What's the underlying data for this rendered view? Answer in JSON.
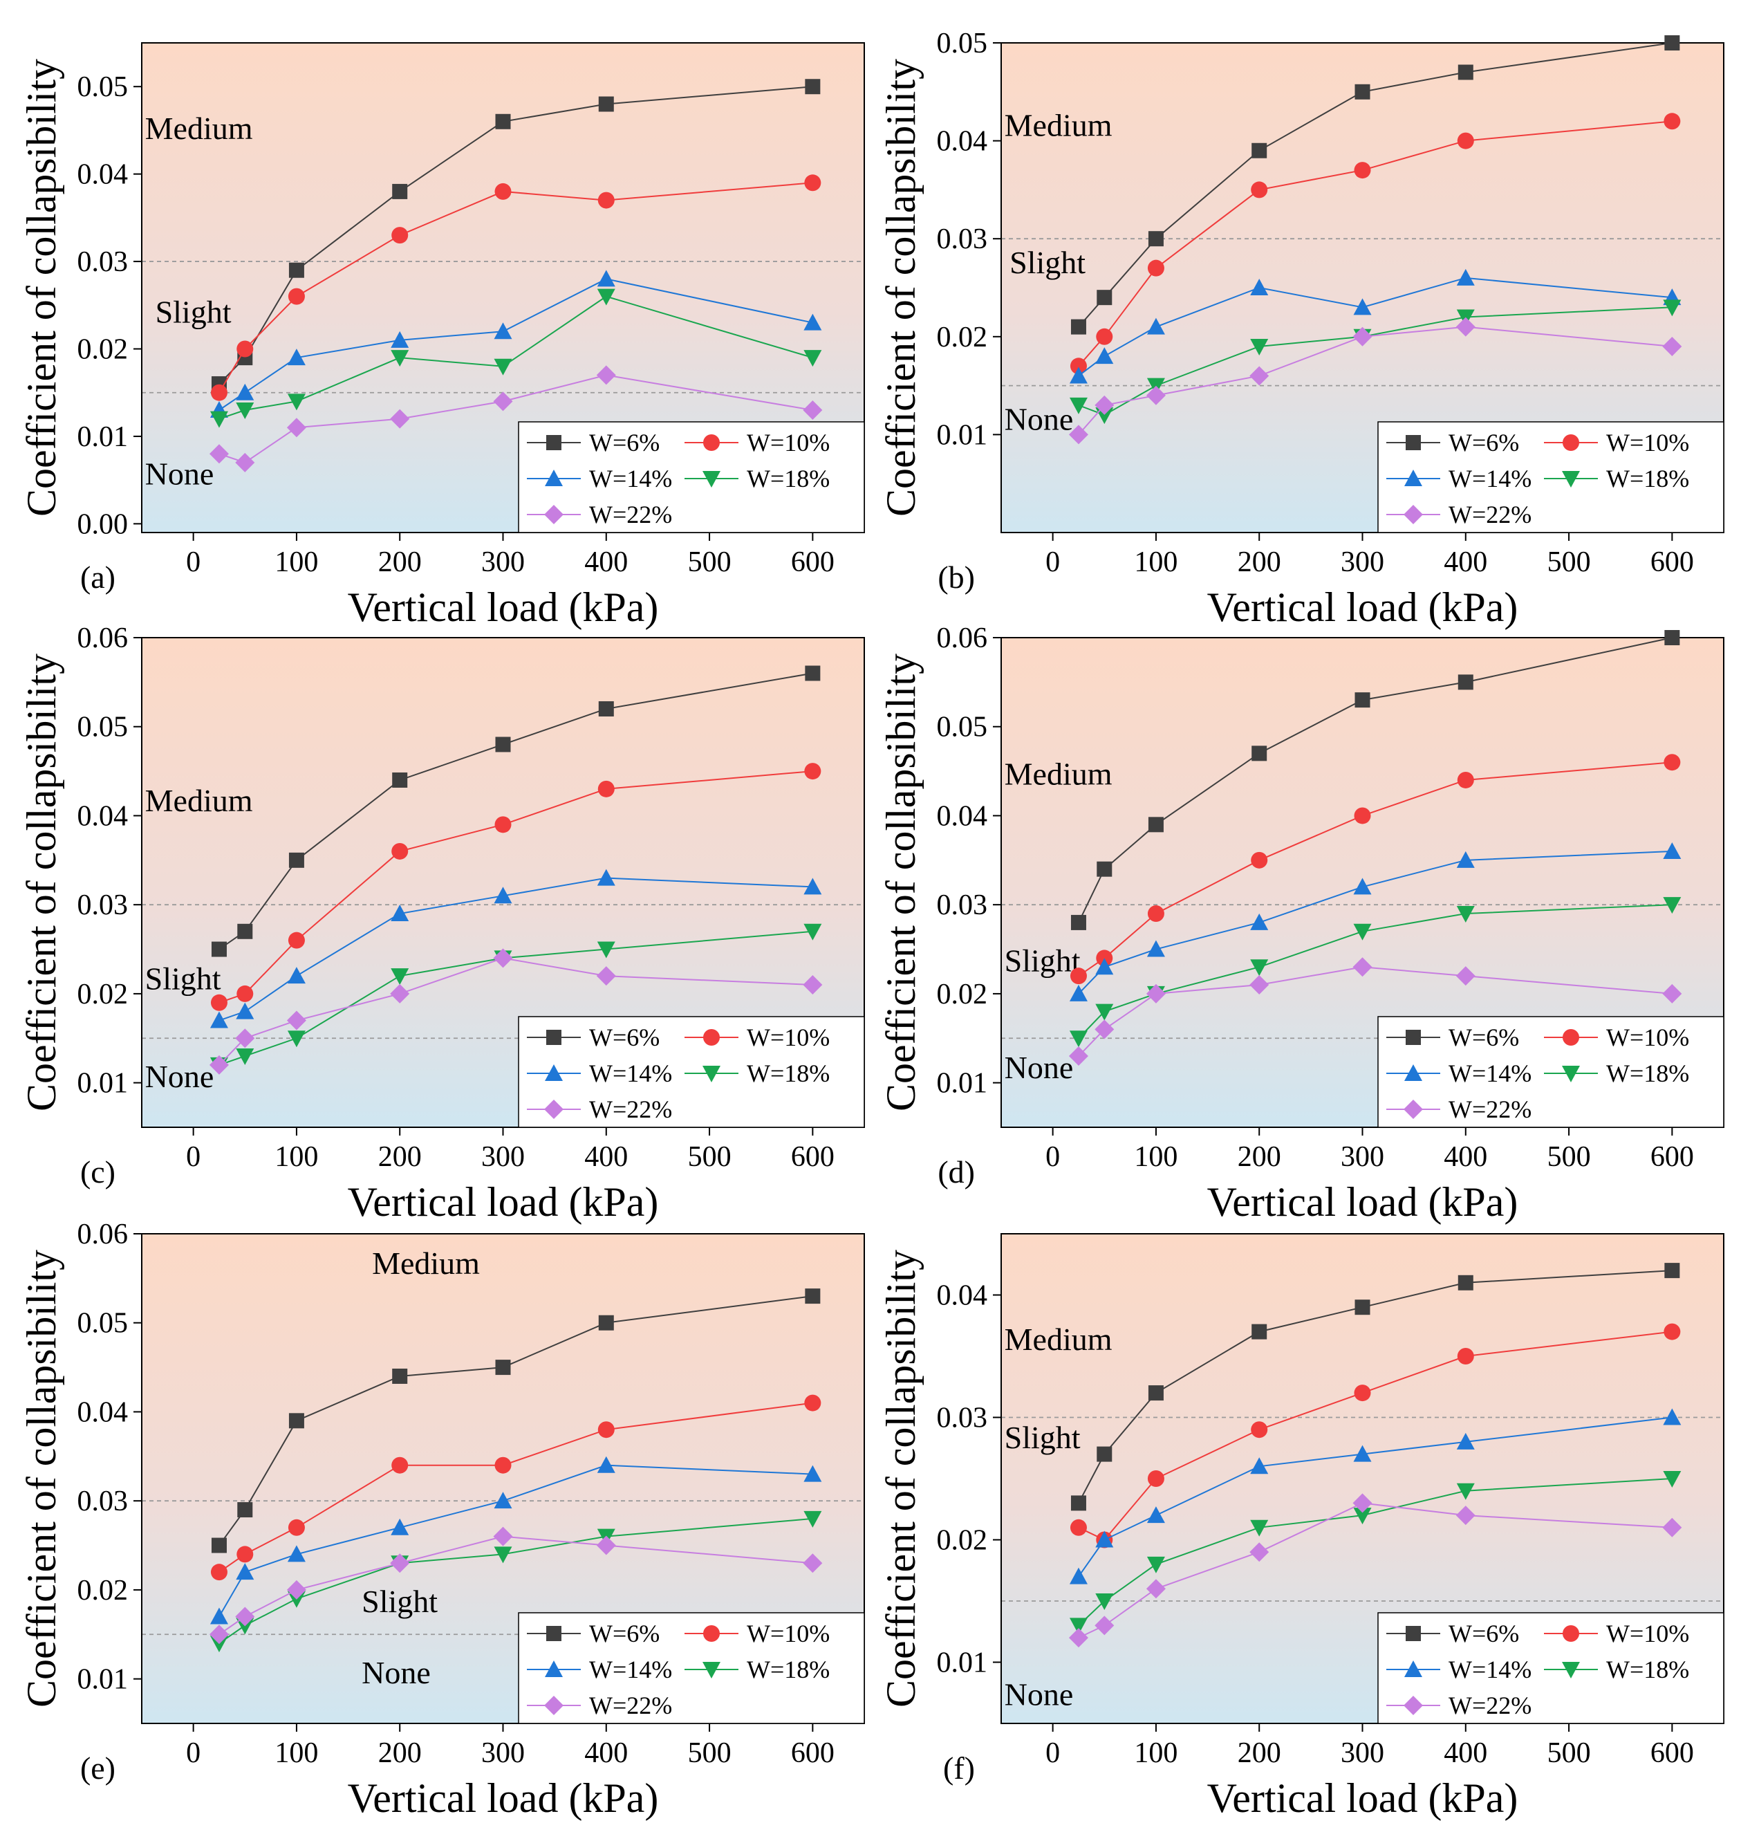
{
  "figure": {
    "ylabel": "Coefficient of collapsibility",
    "xlabel": "Vertical load (kPa)",
    "xticks": [
      "0",
      "100",
      "200",
      "300",
      "400",
      "500",
      "600"
    ],
    "colors": {
      "W=6%": "#3f3f3f",
      "W=10%": "#f03c3c",
      "W=14%": "#1f77d6",
      "W=18%": "#1aa64f",
      "W=22%": "#c77ee0",
      "medium_zone": "#fcd9c6",
      "none_zone": "#cfe6f1"
    }
  },
  "chart_data": [
    {
      "panel": "(a)",
      "type": "line",
      "xlabel": "Vertical load (kPa)",
      "ylabel": "Coefficient of collapsibility",
      "xlim": [
        -50,
        650
      ],
      "ylim": [
        -0.001,
        0.055
      ],
      "yticks": [
        "0.00",
        "0.01",
        "0.02",
        "0.03",
        "0.04",
        "0.05"
      ],
      "thresholds": [
        0.015,
        0.03
      ],
      "zones": [
        {
          "label": "Medium",
          "x": 0,
          "y": 0.044
        },
        {
          "label": "Slight",
          "x": 10,
          "y": 0.023
        },
        {
          "label": "None",
          "x": 0,
          "y": 0.0045
        }
      ],
      "x": [
        25,
        50,
        100,
        200,
        300,
        400,
        600
      ],
      "series": [
        {
          "name": "W=6%",
          "marker": "square",
          "values": [
            0.016,
            0.019,
            0.029,
            0.038,
            0.046,
            0.048,
            0.05
          ]
        },
        {
          "name": "W=10%",
          "marker": "circle",
          "values": [
            0.015,
            0.02,
            0.026,
            0.033,
            0.038,
            0.037,
            0.039
          ]
        },
        {
          "name": "W=14%",
          "marker": "triangle-up",
          "values": [
            0.013,
            0.015,
            0.019,
            0.021,
            0.022,
            0.028,
            0.023
          ]
        },
        {
          "name": "W=18%",
          "marker": "triangle-down",
          "values": [
            0.012,
            0.013,
            0.014,
            0.019,
            0.018,
            0.026,
            0.019
          ]
        },
        {
          "name": "W=22%",
          "marker": "diamond",
          "values": [
            0.008,
            0.007,
            0.011,
            0.012,
            0.014,
            0.017,
            0.013
          ]
        }
      ],
      "legend": [
        "W=6%",
        "W=10%",
        "W=14%",
        "W=18%",
        "W=22%"
      ]
    },
    {
      "panel": "(b)",
      "type": "line",
      "xlabel": "Vertical load (kPa)",
      "ylabel": "Coefficient of collapsibility",
      "xlim": [
        -50,
        650
      ],
      "ylim": [
        0.0,
        0.05
      ],
      "yticks": [
        "0.01",
        "0.02",
        "0.03",
        "0.04",
        "0.05"
      ],
      "thresholds": [
        0.015,
        0.03
      ],
      "zones": [
        {
          "label": "Medium",
          "x": 0,
          "y": 0.0405
        },
        {
          "label": "Slight",
          "x": 5,
          "y": 0.0265
        },
        {
          "label": "None",
          "x": 0,
          "y": 0.0105
        }
      ],
      "x": [
        25,
        50,
        100,
        200,
        300,
        400,
        600
      ],
      "series": [
        {
          "name": "W=6%",
          "marker": "square",
          "values": [
            0.021,
            0.024,
            0.03,
            0.039,
            0.045,
            0.047,
            0.05
          ]
        },
        {
          "name": "W=10%",
          "marker": "circle",
          "values": [
            0.017,
            0.02,
            0.027,
            0.035,
            0.037,
            0.04,
            0.042
          ]
        },
        {
          "name": "W=14%",
          "marker": "triangle-up",
          "values": [
            0.016,
            0.018,
            0.021,
            0.025,
            0.023,
            0.026,
            0.024
          ]
        },
        {
          "name": "W=18%",
          "marker": "triangle-down",
          "values": [
            0.013,
            0.012,
            0.015,
            0.019,
            0.02,
            0.022,
            0.023
          ]
        },
        {
          "name": "W=22%",
          "marker": "diamond",
          "values": [
            0.01,
            0.013,
            0.014,
            0.016,
            0.02,
            0.021,
            0.019
          ]
        }
      ],
      "legend": [
        "W=6%",
        "W=10%",
        "W=14%",
        "W=18%",
        "W=22%"
      ]
    },
    {
      "panel": "(c)",
      "type": "line",
      "xlabel": "Vertical load (kPa)",
      "ylabel": "Coefficient of collapsibility",
      "xlim": [
        -50,
        650
      ],
      "ylim": [
        0.005,
        0.06
      ],
      "yticks": [
        "0.01",
        "0.02",
        "0.03",
        "0.04",
        "0.05",
        "0.06"
      ],
      "thresholds": [
        0.015,
        0.03
      ],
      "zones": [
        {
          "label": "Medium",
          "x": 0,
          "y": 0.0405
        },
        {
          "label": "Slight",
          "x": 0,
          "y": 0.0205
        },
        {
          "label": "None",
          "x": 0,
          "y": 0.0095
        }
      ],
      "x": [
        25,
        50,
        100,
        200,
        300,
        400,
        600
      ],
      "series": [
        {
          "name": "W=6%",
          "marker": "square",
          "values": [
            0.025,
            0.027,
            0.035,
            0.044,
            0.048,
            0.052,
            0.056
          ]
        },
        {
          "name": "W=10%",
          "marker": "circle",
          "values": [
            0.019,
            0.02,
            0.026,
            0.036,
            0.039,
            0.043,
            0.045
          ]
        },
        {
          "name": "W=14%",
          "marker": "triangle-up",
          "values": [
            0.017,
            0.018,
            0.022,
            0.029,
            0.031,
            0.033,
            0.032
          ]
        },
        {
          "name": "W=18%",
          "marker": "triangle-down",
          "values": [
            0.012,
            0.013,
            0.015,
            0.022,
            0.024,
            0.025,
            0.027
          ]
        },
        {
          "name": "W=22%",
          "marker": "diamond",
          "values": [
            0.012,
            0.015,
            0.017,
            0.02,
            0.024,
            0.022,
            0.021
          ]
        }
      ],
      "legend": [
        "W=6%",
        "W=10%",
        "W=14%",
        "W=18%",
        "W=22%"
      ]
    },
    {
      "panel": "(d)",
      "type": "line",
      "xlabel": "Vertical load (kPa)",
      "ylabel": "Coefficient of collapsibility",
      "xlim": [
        -50,
        650
      ],
      "ylim": [
        0.005,
        0.06
      ],
      "yticks": [
        "0.01",
        "0.02",
        "0.03",
        "0.04",
        "0.05",
        "0.06"
      ],
      "thresholds": [
        0.015,
        0.03
      ],
      "zones": [
        {
          "label": "Medium",
          "x": 0,
          "y": 0.0435
        },
        {
          "label": "Slight",
          "x": 0,
          "y": 0.0225
        },
        {
          "label": "None",
          "x": 0,
          "y": 0.0105
        }
      ],
      "x": [
        25,
        50,
        100,
        200,
        300,
        400,
        600
      ],
      "series": [
        {
          "name": "W=6%",
          "marker": "square",
          "values": [
            0.028,
            0.034,
            0.039,
            0.047,
            0.053,
            0.055,
            0.06
          ]
        },
        {
          "name": "W=10%",
          "marker": "circle",
          "values": [
            0.022,
            0.024,
            0.029,
            0.035,
            0.04,
            0.044,
            0.046
          ]
        },
        {
          "name": "W=14%",
          "marker": "triangle-up",
          "values": [
            0.02,
            0.023,
            0.025,
            0.028,
            0.032,
            0.035,
            0.036
          ]
        },
        {
          "name": "W=18%",
          "marker": "triangle-down",
          "values": [
            0.015,
            0.018,
            0.02,
            0.023,
            0.027,
            0.029,
            0.03
          ]
        },
        {
          "name": "W=22%",
          "marker": "diamond",
          "values": [
            0.013,
            0.016,
            0.02,
            0.021,
            0.023,
            0.022,
            0.02
          ]
        }
      ],
      "legend": [
        "W=6%",
        "W=10%",
        "W=14%",
        "W=18%",
        "W=22%"
      ]
    },
    {
      "panel": "(e)",
      "type": "line",
      "xlabel": "Vertical load (kPa)",
      "ylabel": "Coefficient of collapsibility",
      "xlim": [
        -50,
        650
      ],
      "ylim": [
        0.005,
        0.06
      ],
      "yticks": [
        "0.01",
        "0.02",
        "0.03",
        "0.04",
        "0.05",
        "0.06"
      ],
      "thresholds": [
        0.015,
        0.03
      ],
      "zones": [
        {
          "label": "Medium",
          "x": 220,
          "y": 0.0555
        },
        {
          "label": "Slight",
          "x": 210,
          "y": 0.0175
        },
        {
          "label": "None",
          "x": 210,
          "y": 0.0095
        }
      ],
      "x": [
        25,
        50,
        100,
        200,
        300,
        400,
        600
      ],
      "series": [
        {
          "name": "W=6%",
          "marker": "square",
          "values": [
            0.025,
            0.029,
            0.039,
            0.044,
            0.045,
            0.05,
            0.053
          ]
        },
        {
          "name": "W=10%",
          "marker": "circle",
          "values": [
            0.022,
            0.024,
            0.027,
            0.034,
            0.034,
            0.038,
            0.041
          ]
        },
        {
          "name": "W=14%",
          "marker": "triangle-up",
          "values": [
            0.017,
            0.022,
            0.024,
            0.027,
            0.03,
            0.034,
            0.033
          ]
        },
        {
          "name": "W=18%",
          "marker": "triangle-down",
          "values": [
            0.014,
            0.016,
            0.019,
            0.023,
            0.024,
            0.026,
            0.028
          ]
        },
        {
          "name": "W=22%",
          "marker": "diamond",
          "values": [
            0.015,
            0.017,
            0.02,
            0.023,
            0.026,
            0.025,
            0.023
          ]
        }
      ],
      "legend": [
        "W=6%",
        "W=10%",
        "W=14%",
        "W=18%",
        "W=22%"
      ]
    },
    {
      "panel": "(f)",
      "type": "line",
      "xlabel": "Vertical load (kPa)",
      "ylabel": "Coefficient of collapsibility",
      "xlim": [
        -50,
        650
      ],
      "ylim": [
        0.005,
        0.045
      ],
      "yticks": [
        "0.01",
        "0.02",
        "0.03",
        "0.04"
      ],
      "thresholds": [
        0.015,
        0.03
      ],
      "zones": [
        {
          "label": "Medium",
          "x": 0,
          "y": 0.0355
        },
        {
          "label": "Slight",
          "x": 0,
          "y": 0.0275
        },
        {
          "label": "None",
          "x": 0,
          "y": 0.0065
        }
      ],
      "x": [
        25,
        50,
        100,
        200,
        300,
        400,
        600
      ],
      "series": [
        {
          "name": "W=6%",
          "marker": "square",
          "values": [
            0.023,
            0.027,
            0.032,
            0.037,
            0.039,
            0.041,
            0.042
          ]
        },
        {
          "name": "W=10%",
          "marker": "circle",
          "values": [
            0.021,
            0.02,
            0.025,
            0.029,
            0.032,
            0.035,
            0.037
          ]
        },
        {
          "name": "W=14%",
          "marker": "triangle-up",
          "values": [
            0.017,
            0.02,
            0.022,
            0.026,
            0.027,
            0.028,
            0.03
          ]
        },
        {
          "name": "W=18%",
          "marker": "triangle-down",
          "values": [
            0.013,
            0.015,
            0.018,
            0.021,
            0.022,
            0.024,
            0.025
          ]
        },
        {
          "name": "W=22%",
          "marker": "diamond",
          "values": [
            0.012,
            0.013,
            0.016,
            0.019,
            0.023,
            0.022,
            0.021
          ]
        }
      ],
      "legend": [
        "W=6%",
        "W=10%",
        "W=14%",
        "W=18%",
        "W=22%"
      ]
    }
  ]
}
